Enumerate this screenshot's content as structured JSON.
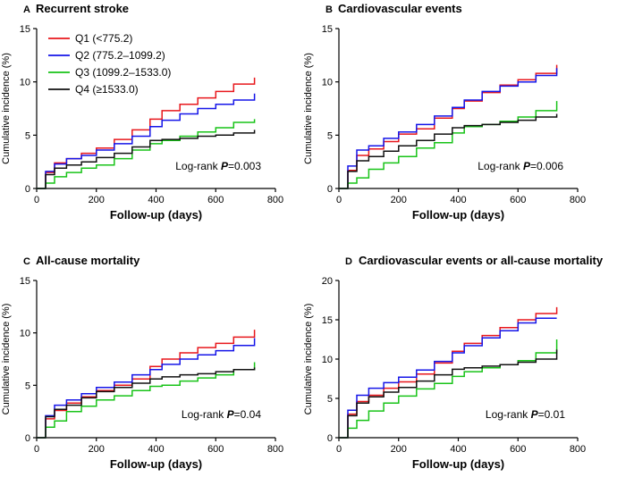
{
  "figure": {
    "legend": [
      {
        "name": "Q1 (<775.2)",
        "color": "#e8171c"
      },
      {
        "name": "Q2 (775.2–1099.2)",
        "color": "#1515e8"
      },
      {
        "name": "Q3 (1099.2–1533.0)",
        "color": "#17c317"
      },
      {
        "name": "Q4 (≥1533.0)",
        "color": "#111111"
      }
    ]
  },
  "chart_data": [
    {
      "type": "line",
      "panel": "A",
      "title": "Recurrent stroke",
      "xlabel": "Follow-up (days)",
      "ylabel": "Cumulative incidence (%)",
      "xlim": [
        0,
        800
      ],
      "ylim": [
        0,
        15
      ],
      "xticks": [
        0,
        200,
        400,
        600,
        800
      ],
      "yticks": [
        0,
        5,
        10,
        15
      ],
      "annotation": {
        "prefix": "Log-rank ",
        "p_label": "P",
        "value": "=0.003"
      },
      "series": [
        {
          "name": "Q1 (<775.2)",
          "color": "#e8171c",
          "x": [
            0,
            30,
            60,
            100,
            150,
            200,
            260,
            320,
            380,
            420,
            480,
            540,
            600,
            660,
            730
          ],
          "y": [
            0,
            1.5,
            2.4,
            2.8,
            3.3,
            3.8,
            4.6,
            5.5,
            6.5,
            7.3,
            7.9,
            8.5,
            9.1,
            9.8,
            10.4
          ]
        },
        {
          "name": "Q2 (775.2–1099.2)",
          "color": "#1515e8",
          "x": [
            0,
            30,
            60,
            100,
            150,
            200,
            260,
            320,
            380,
            420,
            480,
            540,
            600,
            660,
            730
          ],
          "y": [
            0,
            1.6,
            2.3,
            2.8,
            3.1,
            3.6,
            4.2,
            4.9,
            5.8,
            6.4,
            7.0,
            7.5,
            7.9,
            8.3,
            8.9
          ]
        },
        {
          "name": "Q3 (1099.2–1533.0)",
          "color": "#17c317",
          "x": [
            0,
            30,
            60,
            100,
            150,
            200,
            260,
            320,
            380,
            420,
            480,
            540,
            600,
            660,
            730
          ],
          "y": [
            0,
            0.5,
            1.1,
            1.5,
            1.9,
            2.2,
            2.8,
            3.6,
            4.2,
            4.5,
            4.9,
            5.3,
            5.7,
            6.2,
            6.5
          ]
        },
        {
          "name": "Q4 (≥1533.0)",
          "color": "#111111",
          "x": [
            0,
            30,
            60,
            100,
            150,
            200,
            260,
            320,
            380,
            420,
            480,
            540,
            600,
            660,
            730
          ],
          "y": [
            0,
            1.3,
            1.9,
            2.2,
            2.5,
            2.9,
            3.3,
            3.9,
            4.5,
            4.6,
            4.7,
            4.9,
            5.0,
            5.2,
            5.5
          ]
        }
      ]
    },
    {
      "type": "line",
      "panel": "B",
      "title": "Cardiovascular events",
      "xlabel": "Follow-up (days)",
      "ylabel": "Cumulative incidence (%)",
      "xlim": [
        0,
        800
      ],
      "ylim": [
        0,
        15
      ],
      "xticks": [
        0,
        200,
        400,
        600,
        800
      ],
      "yticks": [
        0,
        5,
        10,
        15
      ],
      "annotation": {
        "prefix": "Log-rank ",
        "p_label": "P",
        "value": "=0.006"
      },
      "series": [
        {
          "name": "Q1 (<775.2)",
          "color": "#e8171c",
          "x": [
            0,
            30,
            60,
            100,
            150,
            200,
            260,
            320,
            380,
            420,
            480,
            540,
            600,
            660,
            730
          ],
          "y": [
            0,
            1.7,
            3.1,
            3.7,
            4.4,
            5.1,
            5.6,
            6.6,
            7.5,
            8.2,
            9.0,
            9.7,
            10.2,
            10.8,
            11.6
          ]
        },
        {
          "name": "Q2 (775.2–1099.2)",
          "color": "#1515e8",
          "x": [
            0,
            30,
            60,
            100,
            150,
            200,
            260,
            320,
            380,
            420,
            480,
            540,
            600,
            660,
            730
          ],
          "y": [
            0,
            2.1,
            3.6,
            4.0,
            4.7,
            5.3,
            6.0,
            6.8,
            7.6,
            8.3,
            9.1,
            9.6,
            10.0,
            10.6,
            11.3
          ]
        },
        {
          "name": "Q3 (1099.2–1533.0)",
          "color": "#17c317",
          "x": [
            0,
            30,
            60,
            100,
            150,
            200,
            260,
            320,
            380,
            420,
            480,
            540,
            600,
            660,
            730
          ],
          "y": [
            0,
            0.5,
            1.0,
            1.8,
            2.4,
            3.0,
            3.8,
            4.3,
            5.2,
            5.8,
            6.0,
            6.3,
            6.7,
            7.3,
            8.2
          ]
        },
        {
          "name": "Q4 (≥1533.0)",
          "color": "#111111",
          "x": [
            0,
            30,
            60,
            100,
            150,
            200,
            260,
            320,
            380,
            420,
            480,
            540,
            600,
            660,
            730
          ],
          "y": [
            0,
            1.6,
            2.6,
            3.0,
            3.5,
            4.0,
            4.5,
            5.1,
            5.7,
            5.9,
            6.0,
            6.2,
            6.4,
            6.7,
            7.0
          ]
        }
      ]
    },
    {
      "type": "line",
      "panel": "C",
      "title": "All-cause mortality",
      "xlabel": "Follow-up (days)",
      "ylabel": "Cumulative incidence (%)",
      "xlim": [
        0,
        800
      ],
      "ylim": [
        0,
        15
      ],
      "xticks": [
        0,
        200,
        400,
        600,
        800
      ],
      "yticks": [
        0,
        5,
        10,
        15
      ],
      "annotation": {
        "prefix": "Log-rank ",
        "p_label": "P",
        "value": "=0.04"
      },
      "series": [
        {
          "name": "Q1 (<775.2)",
          "color": "#e8171c",
          "x": [
            0,
            30,
            60,
            100,
            150,
            200,
            260,
            320,
            380,
            420,
            480,
            540,
            600,
            660,
            730
          ],
          "y": [
            0,
            1.8,
            2.6,
            3.3,
            3.9,
            4.5,
            5.0,
            5.6,
            6.8,
            7.5,
            8.1,
            8.6,
            9.0,
            9.6,
            10.3
          ]
        },
        {
          "name": "Q2 (775.2–1099.2)",
          "color": "#1515e8",
          "x": [
            0,
            30,
            60,
            100,
            150,
            200,
            260,
            320,
            380,
            420,
            480,
            540,
            600,
            660,
            730
          ],
          "y": [
            0,
            2.1,
            3.1,
            3.6,
            4.2,
            4.8,
            5.3,
            6.0,
            6.5,
            7.0,
            7.5,
            7.9,
            8.3,
            8.8,
            9.5
          ]
        },
        {
          "name": "Q3 (1099.2–1533.0)",
          "color": "#17c317",
          "x": [
            0,
            30,
            60,
            100,
            150,
            200,
            260,
            320,
            380,
            420,
            480,
            540,
            600,
            660,
            730
          ],
          "y": [
            0,
            1.0,
            1.6,
            2.5,
            3.0,
            3.6,
            4.0,
            4.5,
            4.9,
            5.0,
            5.4,
            5.7,
            6.0,
            6.5,
            7.2
          ]
        },
        {
          "name": "Q4 (≥1533.0)",
          "color": "#111111",
          "x": [
            0,
            30,
            60,
            100,
            150,
            200,
            260,
            320,
            380,
            420,
            480,
            540,
            600,
            660,
            730
          ],
          "y": [
            0,
            2.0,
            2.7,
            3.1,
            3.8,
            4.4,
            4.8,
            5.2,
            5.6,
            5.8,
            6.0,
            6.1,
            6.3,
            6.5,
            6.7
          ]
        }
      ]
    },
    {
      "type": "line",
      "panel": "D",
      "title": "Cardiovascular events or all-cause mortality",
      "xlabel": "Follow-up (days)",
      "ylabel": "Cumulative incidence (%)",
      "xlim": [
        0,
        800
      ],
      "ylim": [
        0,
        20
      ],
      "xticks": [
        0,
        200,
        400,
        600,
        800
      ],
      "yticks": [
        0,
        5,
        10,
        15,
        20
      ],
      "annotation": {
        "prefix": "Log-rank ",
        "p_label": "P",
        "value": "=0.01"
      },
      "series": [
        {
          "name": "Q1 (<775.2)",
          "color": "#e8171c",
          "x": [
            0,
            30,
            60,
            100,
            150,
            200,
            260,
            320,
            380,
            420,
            480,
            540,
            600,
            660,
            730
          ],
          "y": [
            0,
            3.0,
            4.6,
            5.4,
            6.3,
            7.1,
            8.1,
            9.5,
            11.0,
            12.0,
            13.0,
            14.0,
            15.0,
            15.8,
            16.6
          ]
        },
        {
          "name": "Q2 (775.2–1099.2)",
          "color": "#1515e8",
          "x": [
            0,
            30,
            60,
            100,
            150,
            200,
            260,
            320,
            380,
            420,
            480,
            540,
            600,
            660,
            730
          ],
          "y": [
            0,
            3.5,
            5.4,
            6.3,
            7.0,
            7.7,
            8.6,
            9.7,
            10.8,
            11.7,
            12.7,
            13.6,
            14.6,
            15.2,
            15.2
          ]
        },
        {
          "name": "Q3 (1099.2–1533.0)",
          "color": "#17c317",
          "x": [
            0,
            30,
            60,
            100,
            150,
            200,
            260,
            320,
            380,
            420,
            480,
            540,
            600,
            660,
            730
          ],
          "y": [
            0,
            1.2,
            2.2,
            3.4,
            4.4,
            5.3,
            6.2,
            6.9,
            7.8,
            8.4,
            8.9,
            9.3,
            9.8,
            10.8,
            12.5
          ]
        },
        {
          "name": "Q4 (≥1533.0)",
          "color": "#111111",
          "x": [
            0,
            30,
            60,
            100,
            150,
            200,
            260,
            320,
            380,
            420,
            480,
            540,
            600,
            660,
            730
          ],
          "y": [
            0,
            2.8,
            4.4,
            5.2,
            5.8,
            6.4,
            7.2,
            8.0,
            8.7,
            8.9,
            9.1,
            9.3,
            9.6,
            10.0,
            11.2
          ]
        }
      ]
    }
  ]
}
